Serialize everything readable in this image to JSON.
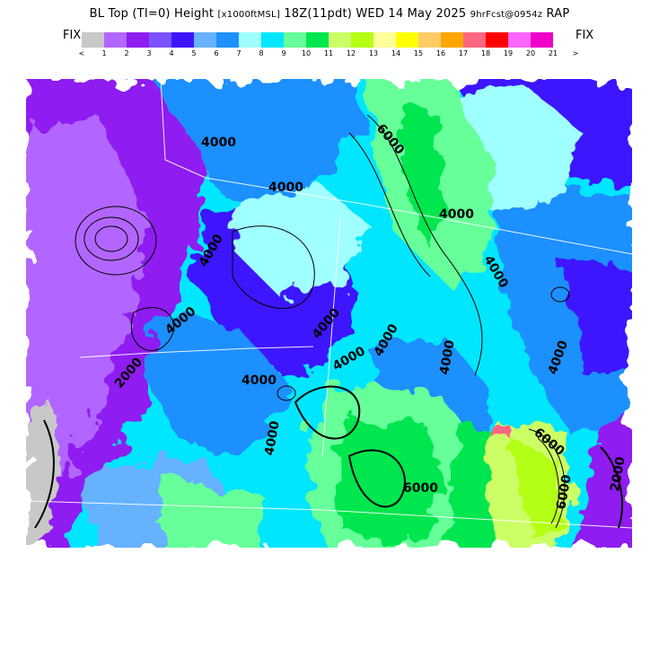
{
  "header": {
    "title_main": "BL Top (TI=0) Height",
    "title_units": "[x1000ftMSL]",
    "title_time": "18Z(11pdt) WED 14 May 2025",
    "title_forecast": "9hrFcst@0954z",
    "title_model": "RAP"
  },
  "legend": {
    "fix_left": "FIX",
    "fix_right": "FIX",
    "colors": [
      "#c8c8c8",
      "#b266ff",
      "#8f1cf0",
      "#7a52ff",
      "#3c14ff",
      "#66b2ff",
      "#1e90ff",
      "#a0ffff",
      "#00e6ff",
      "#66ff99",
      "#00e650",
      "#ccff66",
      "#b4ff14",
      "#ffff99",
      "#ffff00",
      "#ffcc66",
      "#ffa500",
      "#ff6680",
      "#ff0000",
      "#ff66ff",
      "#f000c8"
    ],
    "labels": [
      "<",
      "1",
      "2",
      "3",
      "4",
      "5",
      "6",
      "7",
      "8",
      "9",
      "10",
      "11",
      "12",
      "13",
      "14",
      "15",
      "16",
      "17",
      "18",
      "19",
      "20",
      "21",
      ">"
    ]
  },
  "map": {
    "contour_labels": [
      "4000",
      "4000",
      "4000",
      "4000",
      "4000",
      "4000",
      "4000",
      "4000",
      "4000",
      "4000",
      "4000",
      "4000",
      "4000",
      "6000",
      "6000",
      "6000",
      "6000",
      "2000",
      "2000"
    ]
  }
}
